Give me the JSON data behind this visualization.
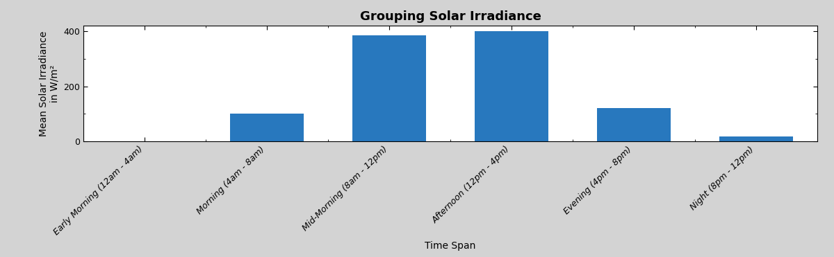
{
  "title": "Grouping Solar Irradiance",
  "xlabel": "Time Span",
  "ylabel_line1": "Mean Solar Irradiance",
  "ylabel_line2": "in W/m²",
  "categories": [
    "Early Morning (12am - 4am)",
    "Morning (4am - 8am)",
    "Mid-Morning (8am - 12pm)",
    "Afternoon (12pm - 4pm)",
    "Evening (4pm - 8pm)",
    "Night (8pm - 12pm)"
  ],
  "values": [
    0,
    100,
    385,
    400,
    120,
    18
  ],
  "bar_color": "#2878be",
  "background_color": "#d3d3d3",
  "plot_bg_color": "#ffffff",
  "ylim": [
    0,
    420
  ],
  "yticks": [
    0,
    200,
    400
  ],
  "title_fontsize": 13,
  "axis_label_fontsize": 10,
  "tick_label_fontsize": 9,
  "bar_width": 0.6
}
